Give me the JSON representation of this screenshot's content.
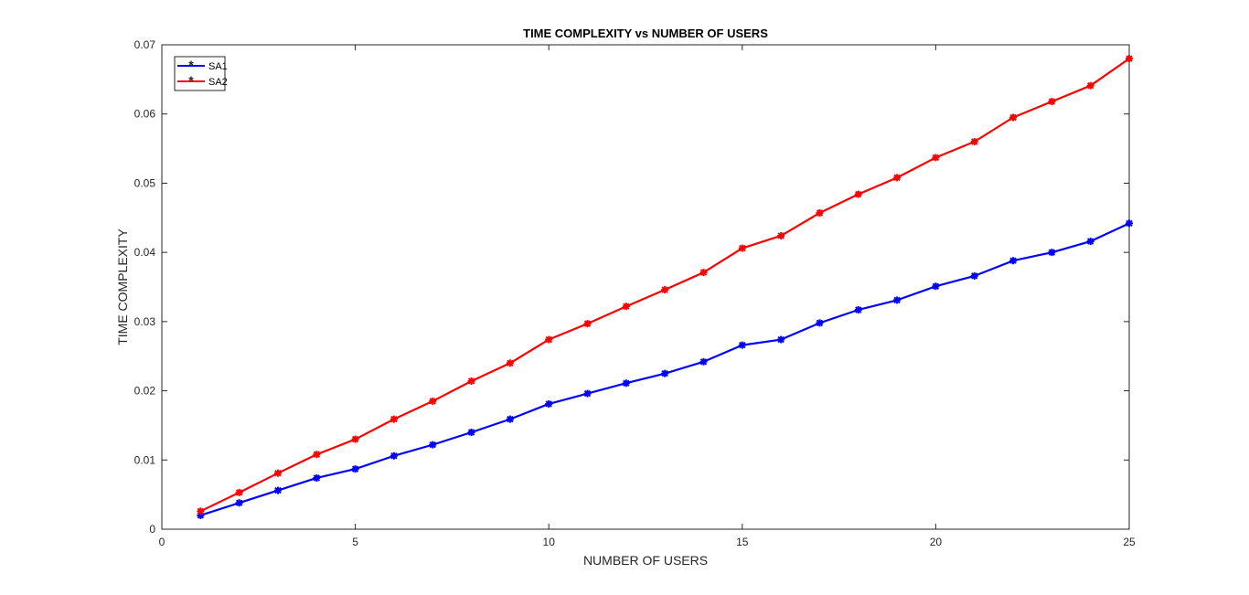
{
  "chart_data": {
    "type": "line",
    "title": "TIME COMPLEXITY vs NUMBER OF USERS",
    "xlabel": "NUMBER OF USERS",
    "ylabel": "TIME COMPLEXITY",
    "xlim": [
      0,
      25
    ],
    "ylim": [
      0,
      0.07
    ],
    "x_ticks": [
      0,
      5,
      10,
      15,
      20,
      25
    ],
    "x_tick_labels": [
      "0",
      "5",
      "10",
      "15",
      "20",
      "25"
    ],
    "y_ticks": [
      0,
      0.01,
      0.02,
      0.03,
      0.04,
      0.05,
      0.06,
      0.07
    ],
    "y_tick_labels": [
      "0",
      "0.01",
      "0.02",
      "0.03",
      "0.04",
      "0.05",
      "0.06",
      "0.07"
    ],
    "grid": false,
    "legend_position": "top-left",
    "x": [
      1,
      2,
      3,
      4,
      5,
      6,
      7,
      8,
      9,
      10,
      11,
      12,
      13,
      14,
      15,
      16,
      17,
      18,
      19,
      20,
      21,
      22,
      23,
      24,
      25
    ],
    "series": [
      {
        "name": "SA1",
        "color": "#0000ff",
        "marker": "asterisk",
        "values": [
          0.002,
          0.0038,
          0.0056,
          0.0074,
          0.0087,
          0.0106,
          0.0122,
          0.014,
          0.0159,
          0.0181,
          0.0196,
          0.0211,
          0.0225,
          0.0242,
          0.0266,
          0.0274,
          0.0298,
          0.0317,
          0.0331,
          0.0351,
          0.0366,
          0.0388,
          0.04,
          0.0416,
          0.0442
        ]
      },
      {
        "name": "SA2",
        "color": "#ff0000",
        "marker": "asterisk",
        "values": [
          0.0026,
          0.0053,
          0.0081,
          0.0108,
          0.013,
          0.0159,
          0.0185,
          0.0214,
          0.024,
          0.0274,
          0.0297,
          0.0322,
          0.0346,
          0.0371,
          0.0406,
          0.0424,
          0.0457,
          0.0484,
          0.0508,
          0.0537,
          0.056,
          0.0595,
          0.0618,
          0.0641,
          0.068
        ]
      }
    ]
  }
}
